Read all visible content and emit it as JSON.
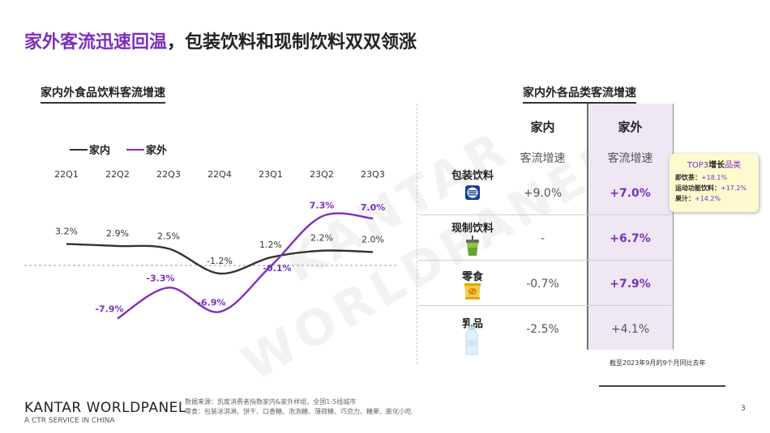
{
  "title": {
    "accent": "家外客流迅速回温",
    "rest": "，包装饮料和现制饮料双双领涨"
  },
  "left_section": {
    "title": "家内外食品饮料客流增速"
  },
  "right_section": {
    "title": "家内外各品类客流增速"
  },
  "colors": {
    "in_home": "#333333",
    "out_home": "#7b2fbe"
  },
  "chart_data": {
    "type": "line",
    "title": "家内外食品饮料客流增速",
    "categories": [
      "22Q1",
      "22Q2",
      "22Q3",
      "22Q4",
      "23Q1",
      "23Q2",
      "23Q3"
    ],
    "series": [
      {
        "name": "家内",
        "values": [
          3.2,
          2.9,
          2.5,
          -1.2,
          1.2,
          2.2,
          2.0
        ],
        "labels": [
          "3.2%",
          "2.9%",
          "2.5%",
          "-1.2%",
          "1.2%",
          "2.2%",
          "2.0%"
        ]
      },
      {
        "name": "家外",
        "values": [
          null,
          -7.9,
          -3.3,
          -6.9,
          -0.1,
          7.3,
          7.0
        ],
        "labels": [
          "",
          "-7.9%",
          "-3.3%",
          "-6.9%",
          "-0.1%",
          "7.3%",
          "7.0%"
        ]
      }
    ],
    "legend": "top-left",
    "zero_line": true
  },
  "table": {
    "columns": [
      {
        "head": "家内",
        "sub": "客流增速"
      },
      {
        "head": "家外",
        "sub": "客流增速"
      }
    ],
    "rows": [
      {
        "name": "包装饮料",
        "icon": "bottle-cap-icon",
        "in_home": "+9.0%",
        "out_home": "+7.0%",
        "highlight": true
      },
      {
        "name": "现制饮料",
        "icon": "cup-drink-icon",
        "in_home": "-",
        "out_home": "+6.7%",
        "highlight": true
      },
      {
        "name": "零食",
        "icon": "snack-bag-icon",
        "in_home": "-0.7%",
        "out_home": "+7.9%",
        "highlight": true
      },
      {
        "name": "乳品",
        "icon": "milk-bottle-icon",
        "in_home": "-2.5%",
        "out_home": "+4.1%",
        "highlight": false
      }
    ]
  },
  "callout": {
    "head_prefix": "TOP3",
    "head_bold": "增长",
    "head_suffix": "品类",
    "items": [
      {
        "key": "即饮茶：",
        "val": "+18.1%"
      },
      {
        "key": "运动功能饮料：",
        "val": "+17.2%"
      },
      {
        "key": "果汁：",
        "val": "+14.2%"
      }
    ]
  },
  "footnote": "截至2023年9月的9个月同比去年",
  "footer": {
    "logo": "KANTAR WORLDPANEL",
    "logo_sub": "A CTR SERVICE IN CHINA",
    "source_line1": "数据来源：凯度消费者指数家内&家外样组，全国1-5线城市",
    "source_line2": "零食：包装冰淇淋、饼干、口香糖、泡泡糖、薄荷糖、巧克力、糖果、膨化小吃",
    "page": "3"
  },
  "watermark": {
    "line1": "KANTAR",
    "line2": "WORLDPANEL"
  }
}
